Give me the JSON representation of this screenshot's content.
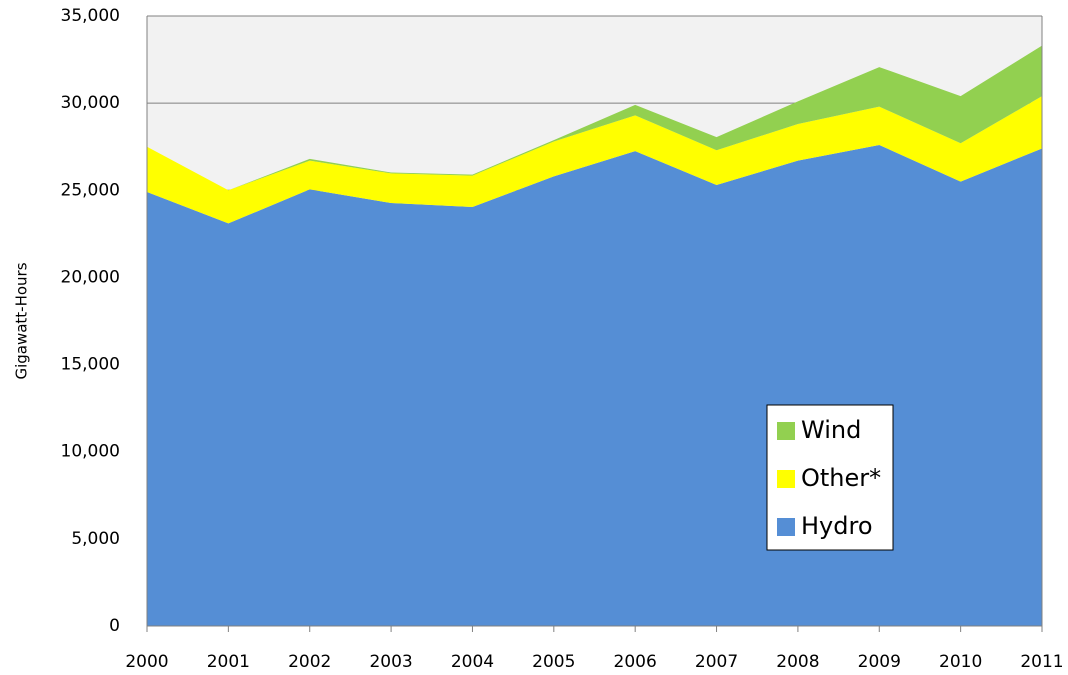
{
  "chart_data": {
    "type": "stacked_area",
    "y_label": "Gigawatt-Hours",
    "categories": [
      "2000",
      "2001",
      "2002",
      "2003",
      "2004",
      "2005",
      "2006",
      "2007",
      "2008",
      "2009",
      "2010",
      "2011"
    ],
    "series": [
      {
        "name": "Hydro",
        "color": "#558ed5",
        "values": [
          24900,
          23100,
          25050,
          24270,
          24040,
          25800,
          27250,
          25300,
          26700,
          27600,
          25500,
          27400
        ]
      },
      {
        "name": "Other*",
        "color": "#ffff00",
        "values": [
          2600,
          1900,
          1650,
          1700,
          1800,
          2000,
          2050,
          2000,
          2100,
          2200,
          2200,
          3000
        ]
      },
      {
        "name": "Wind",
        "color": "#92d050",
        "values": [
          0,
          0,
          100,
          50,
          60,
          80,
          600,
          750,
          1300,
          2270,
          2700,
          2900
        ]
      }
    ],
    "ylim": [
      0,
      35000
    ],
    "yticks": [
      {
        "value": 0,
        "label": "0"
      },
      {
        "value": 5000,
        "label": "5,000"
      },
      {
        "value": 10000,
        "label": "10,000"
      },
      {
        "value": 15000,
        "label": "15,000"
      },
      {
        "value": 20000,
        "label": "20,000"
      },
      {
        "value": 25000,
        "label": "25,000"
      },
      {
        "value": 30000,
        "label": "30,000"
      },
      {
        "value": 35000,
        "label": "35,000"
      }
    ],
    "grid": true,
    "legend": "lower right"
  }
}
